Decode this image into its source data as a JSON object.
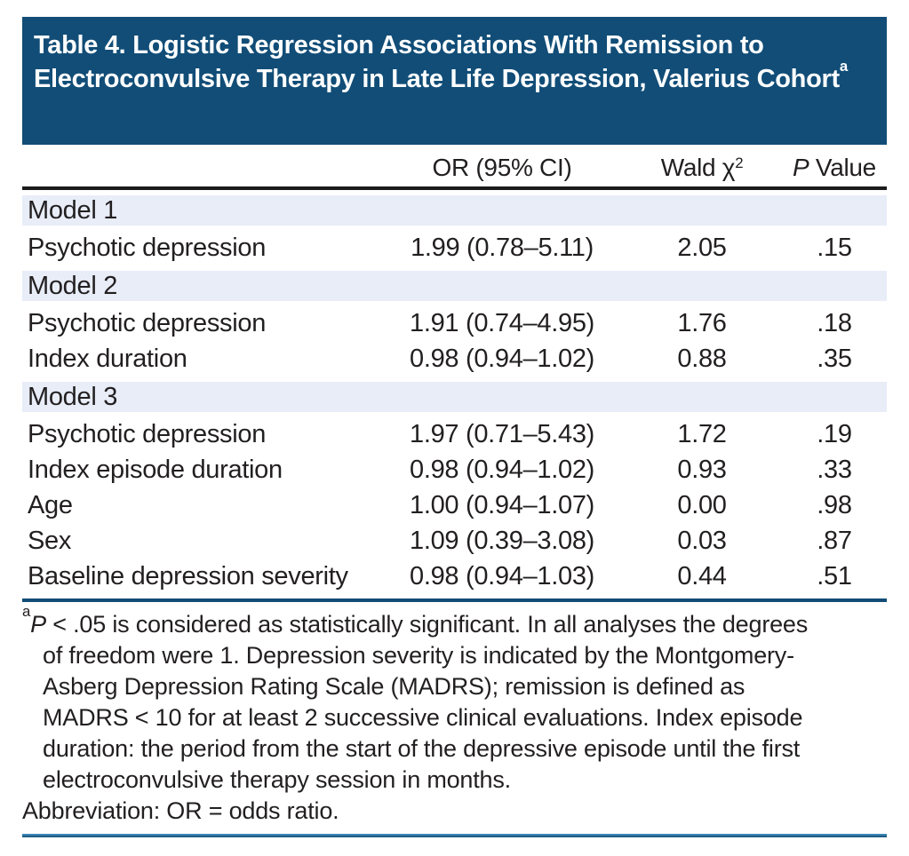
{
  "colors": {
    "navy": "#114d77",
    "band_blue": "#e8edf8",
    "text": "#221f20",
    "header_rule": "#1b1b1b"
  },
  "title": {
    "text": "Table 4. Logistic Regression Associations With Remission to Electroconvulsive Therapy in Late Life Depression, Valerius Cohort",
    "superscript": "a"
  },
  "table": {
    "columns": {
      "or": "OR (95% CI)",
      "wald_base": "Wald χ",
      "wald_sup": "2",
      "p_italic": "P",
      "p_rest": " Value"
    },
    "sections": [
      {
        "label": "Model 1",
        "rows": [
          {
            "label": "Psychotic depression",
            "or": "1.99 (0.78–5.11)",
            "wald": "2.05",
            "p": ".15"
          }
        ]
      },
      {
        "label": "Model 2",
        "rows": [
          {
            "label": "Psychotic depression",
            "or": "1.91 (0.74–4.95)",
            "wald": "1.76",
            "p": ".18"
          },
          {
            "label": "Index duration",
            "or": "0.98 (0.94–1.02)",
            "wald": "0.88",
            "p": ".35"
          }
        ]
      },
      {
        "label": "Model 3",
        "rows": [
          {
            "label": "Psychotic depression",
            "or": "1.97 (0.71–5.43)",
            "wald": "1.72",
            "p": ".19"
          },
          {
            "label": "Index episode duration",
            "or": "0.98 (0.94–1.02)",
            "wald": "0.93",
            "p": ".33"
          },
          {
            "label": "Age",
            "or": "1.00 (0.94–1.07)",
            "wald": "0.00",
            "p": ".98"
          },
          {
            "label": "Sex",
            "or": "1.09 (0.39–3.08)",
            "wald": "0.03",
            "p": ".87"
          },
          {
            "label": "Baseline depression severity",
            "or": "0.98 (0.94–1.03)",
            "wald": "0.44",
            "p": ".51"
          }
        ]
      }
    ]
  },
  "footnote": {
    "marker": "a",
    "line1_italic": "P",
    "line1": " < .05 is considered as statistically significant. In all analyses the degrees",
    "line2": "of freedom were 1. Depression severity is indicated by the Montgomery-",
    "line3": "Asberg Depression Rating Scale (MADRS); remission is defined as",
    "line4": "MADRS < 10 for at least 2 successive clinical evaluations. Index episode",
    "line5": "duration: the period from the start of the depressive episode until the first",
    "line6": "electroconvulsive therapy session in months.",
    "abbreviation": "Abbreviation: OR = odds ratio."
  }
}
